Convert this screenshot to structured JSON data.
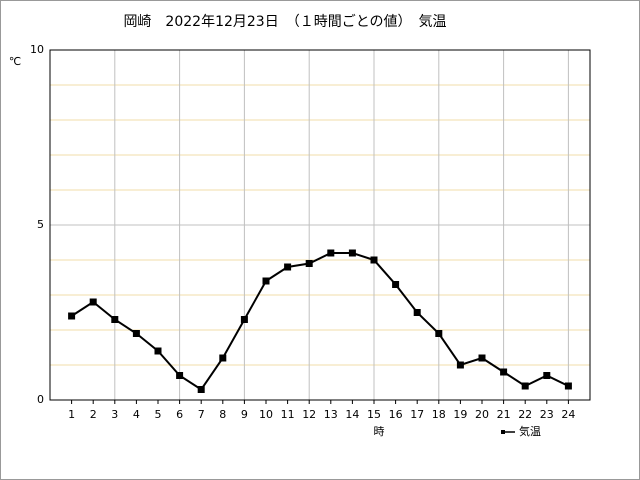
{
  "chart_data": {
    "type": "line",
    "title": "岡崎　2022年12月23日　（１時間ごとの値）　気温",
    "y_label": "℃",
    "x_label": "時",
    "x": [
      1,
      2,
      3,
      4,
      5,
      6,
      7,
      8,
      9,
      10,
      11,
      12,
      13,
      14,
      15,
      16,
      17,
      18,
      19,
      20,
      21,
      22,
      23,
      24
    ],
    "series": [
      {
        "name": "気温",
        "color": "#000000",
        "values": [
          2.4,
          2.8,
          2.3,
          1.9,
          1.4,
          0.7,
          0.3,
          1.2,
          2.3,
          3.4,
          3.8,
          3.9,
          4.2,
          4.2,
          4.0,
          3.3,
          2.5,
          1.9,
          1.0,
          1.2,
          0.8,
          0.4,
          0.7,
          0.4
        ]
      }
    ],
    "xlim": [
      0,
      25
    ],
    "xticks": [
      1,
      2,
      3,
      4,
      5,
      6,
      7,
      8,
      9,
      10,
      11,
      12,
      13,
      14,
      15,
      16,
      17,
      18,
      19,
      20,
      21,
      22,
      23,
      24
    ],
    "ylim": [
      0,
      10
    ],
    "yticks": [
      0,
      5,
      10
    ],
    "x_grid_lines": [
      3,
      6,
      9,
      12,
      15,
      18,
      21,
      24
    ],
    "y_minor_grid_lines": [
      1,
      2,
      3,
      4,
      6,
      7,
      8,
      9
    ],
    "grid": true,
    "legend": "lower right"
  }
}
